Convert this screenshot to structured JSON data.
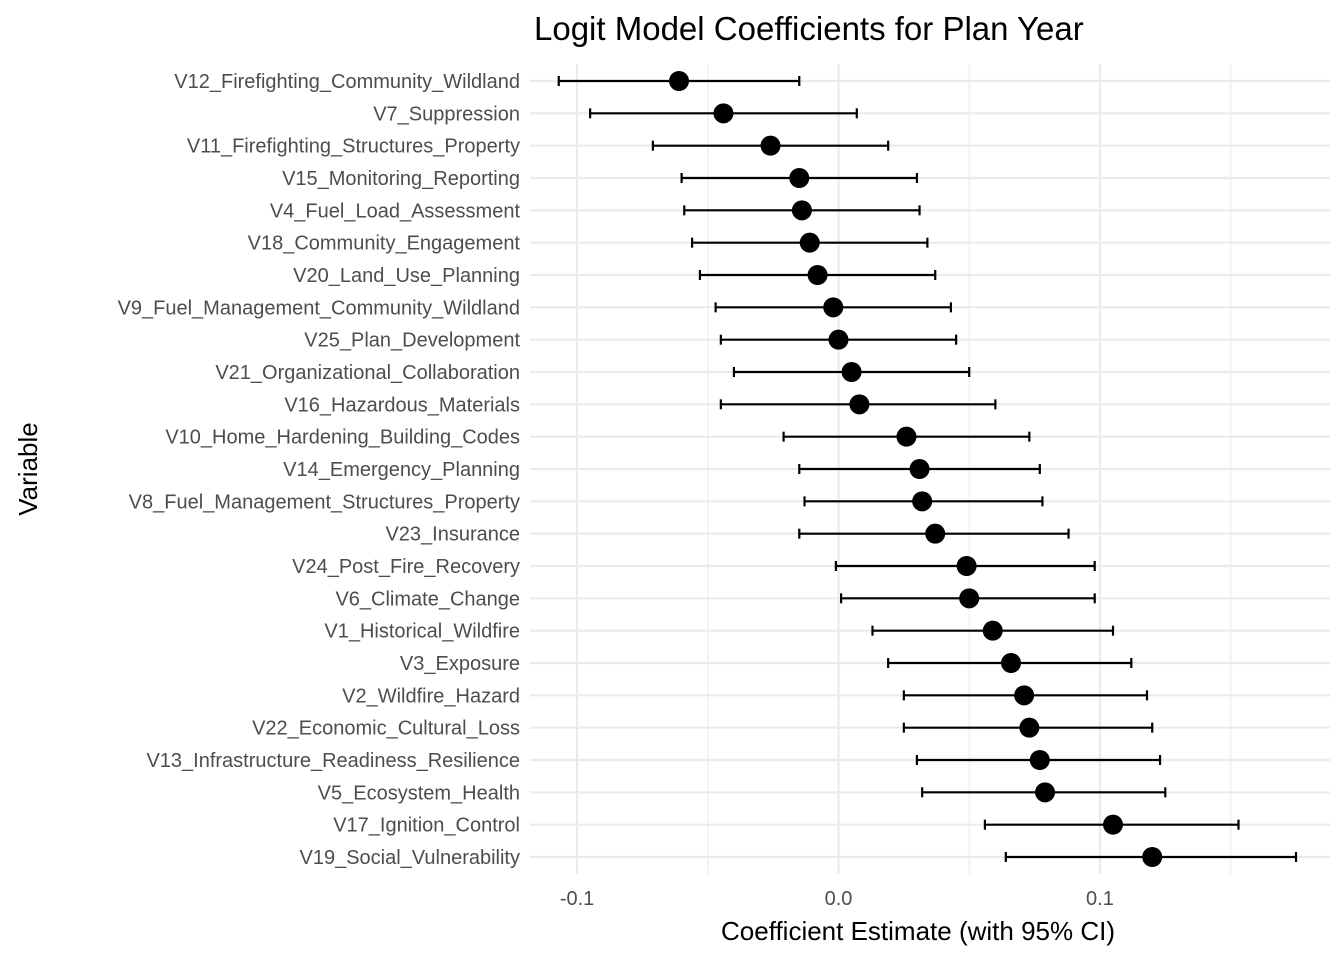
{
  "chart_data": {
    "type": "scatter",
    "title": "Logit Model Coefficients for Plan Year",
    "xlabel": "Coefficient Estimate (with 95% CI)",
    "ylabel": "Variable",
    "xlim": [
      -0.118,
      0.188
    ],
    "x_ticks": [
      {
        "value": -0.1,
        "label": "-0.1"
      },
      {
        "value": 0.0,
        "label": "0.0"
      },
      {
        "value": 0.1,
        "label": "0.1"
      }
    ],
    "x_minor_ticks": [
      -0.05,
      0.05,
      0.15
    ],
    "grid": true,
    "series": [
      {
        "points": [
          {
            "label": "V12_Firefighting_Community_Wildland",
            "estimate": -0.061,
            "ci_low": -0.107,
            "ci_high": -0.015
          },
          {
            "label": "V7_Suppression",
            "estimate": -0.044,
            "ci_low": -0.095,
            "ci_high": 0.007
          },
          {
            "label": "V11_Firefighting_Structures_Property",
            "estimate": -0.026,
            "ci_low": -0.071,
            "ci_high": 0.019
          },
          {
            "label": "V15_Monitoring_Reporting",
            "estimate": -0.015,
            "ci_low": -0.06,
            "ci_high": 0.03
          },
          {
            "label": "V4_Fuel_Load_Assessment",
            "estimate": -0.014,
            "ci_low": -0.059,
            "ci_high": 0.031
          },
          {
            "label": "V18_Community_Engagement",
            "estimate": -0.011,
            "ci_low": -0.056,
            "ci_high": 0.034
          },
          {
            "label": "V20_Land_Use_Planning",
            "estimate": -0.008,
            "ci_low": -0.053,
            "ci_high": 0.037
          },
          {
            "label": "V9_Fuel_Management_Community_Wildland",
            "estimate": -0.002,
            "ci_low": -0.047,
            "ci_high": 0.043
          },
          {
            "label": "V25_Plan_Development",
            "estimate": 0.0,
            "ci_low": -0.045,
            "ci_high": 0.045
          },
          {
            "label": "V21_Organizational_Collaboration",
            "estimate": 0.005,
            "ci_low": -0.04,
            "ci_high": 0.05
          },
          {
            "label": "V16_Hazardous_Materials",
            "estimate": 0.008,
            "ci_low": -0.045,
            "ci_high": 0.06
          },
          {
            "label": "V10_Home_Hardening_Building_Codes",
            "estimate": 0.026,
            "ci_low": -0.021,
            "ci_high": 0.073
          },
          {
            "label": "V14_Emergency_Planning",
            "estimate": 0.031,
            "ci_low": -0.015,
            "ci_high": 0.077
          },
          {
            "label": "V8_Fuel_Management_Structures_Property",
            "estimate": 0.032,
            "ci_low": -0.013,
            "ci_high": 0.078
          },
          {
            "label": "V23_Insurance",
            "estimate": 0.037,
            "ci_low": -0.015,
            "ci_high": 0.088
          },
          {
            "label": "V24_Post_Fire_Recovery",
            "estimate": 0.049,
            "ci_low": -0.001,
            "ci_high": 0.098
          },
          {
            "label": "V6_Climate_Change",
            "estimate": 0.05,
            "ci_low": 0.001,
            "ci_high": 0.098
          },
          {
            "label": "V1_Historical_Wildfire",
            "estimate": 0.059,
            "ci_low": 0.013,
            "ci_high": 0.105
          },
          {
            "label": "V3_Exposure",
            "estimate": 0.066,
            "ci_low": 0.019,
            "ci_high": 0.112
          },
          {
            "label": "V2_Wildfire_Hazard",
            "estimate": 0.071,
            "ci_low": 0.025,
            "ci_high": 0.118
          },
          {
            "label": "V22_Economic_Cultural_Loss",
            "estimate": 0.073,
            "ci_low": 0.025,
            "ci_high": 0.12
          },
          {
            "label": "V13_Infrastructure_Readiness_Resilience",
            "estimate": 0.077,
            "ci_low": 0.03,
            "ci_high": 0.123
          },
          {
            "label": "V5_Ecosystem_Health",
            "estimate": 0.079,
            "ci_low": 0.032,
            "ci_high": 0.125
          },
          {
            "label": "V17_Ignition_Control",
            "estimate": 0.105,
            "ci_low": 0.056,
            "ci_high": 0.153
          },
          {
            "label": "V19_Social_Vulnerability",
            "estimate": 0.12,
            "ci_low": 0.064,
            "ci_high": 0.175
          }
        ]
      }
    ]
  }
}
